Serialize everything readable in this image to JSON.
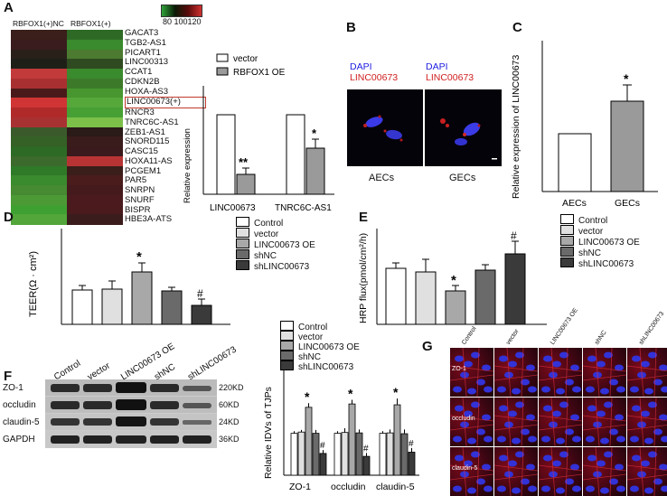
{
  "panels": {
    "a": "A",
    "b": "B",
    "c": "C",
    "d": "D",
    "e": "E",
    "f": "F",
    "g": "G"
  },
  "heatmap": {
    "col_labels": [
      "RBFOX1(+)NC",
      "RBFOX1(+)"
    ],
    "scale_ticks": "80 100120",
    "genes": [
      "GACAT3",
      "TGB2-AS1",
      "PICART1",
      "LINC00313",
      "CCAT1",
      "CDKN2B",
      "HOXA-AS3",
      "LINC00673(+)",
      "RNCR3",
      "TNRC6C-AS1",
      "ZEB1-AS1",
      "SNORD115",
      "CASC15",
      "HOXA11-AS",
      "PCGEM1",
      "PAR5",
      "SNRPN",
      "SNURF",
      "BISPR",
      "HBE3A-ATS"
    ],
    "highlight_gene": "LINC00673(+)",
    "colors_nc": [
      "#3a1f1a",
      "#3a1c1e",
      "#2a201a",
      "#1e2018",
      "#c23a3a",
      "#a83030",
      "#4a1a1a",
      "#d03434",
      "#b02a2a",
      "#a83232",
      "#3a5a2c",
      "#356026",
      "#2d6a26",
      "#3b6a2c",
      "#2f7a28",
      "#3a8a2e",
      "#468a32",
      "#4c9a36",
      "#3fa032",
      "#52a63a"
    ],
    "colors_oe": [
      "#2e6a26",
      "#3a8a2e",
      "#4b7a30",
      "#2f4a20",
      "#3a8a2e",
      "#3c7a2a",
      "#47962f",
      "#56a83a",
      "#46a034",
      "#7cc04a",
      "#2a1a18",
      "#3a1c1c",
      "#3a1a1c",
      "#b83434",
      "#3a1e1a",
      "#4a1c1c",
      "#441a1c",
      "#4a1a1e",
      "#4a1a1c",
      "#3a1c1c"
    ]
  },
  "bar_a": {
    "legend": [
      "vector",
      "RBFOX1 OE"
    ],
    "ylabel": "Relative expression",
    "categories": [
      "LINC00673",
      "TNRC6C-AS1"
    ],
    "marks": [
      "**",
      "*"
    ]
  },
  "micro_b": {
    "dapi": "DAPI",
    "linc": "LINC00673",
    "labels": [
      "AECs",
      "GECs"
    ]
  },
  "bar_c": {
    "ylabel": "Relative expression of LINC00673",
    "categories": [
      "AECs",
      "GECs"
    ],
    "mark": "*"
  },
  "bar_d": {
    "ylabel": "TEER(Ω · cm²)",
    "legend": [
      "Control",
      "vector",
      "LINC00673 OE",
      "shNC",
      "shLINC00673"
    ],
    "marks": [
      "*",
      "#"
    ]
  },
  "bar_e": {
    "ylabel": "HRP flux(pmol/cm²/h)",
    "legend": [
      "Control",
      "vector",
      "LINC00673 OE",
      "shNC",
      "shLINC00673"
    ],
    "marks": [
      "*",
      "#"
    ]
  },
  "blot_f": {
    "lanes": [
      "Control",
      "vector",
      "LINC00673 OE",
      "shNC",
      "shLINC00673"
    ],
    "proteins": [
      "ZO-1",
      "occludin",
      "claudin-5",
      "GAPDH"
    ],
    "sizes": [
      "220KD",
      "60KD",
      "24KD",
      "36KD"
    ]
  },
  "bar_f": {
    "ylabel": "Relative IDVs of TJPs",
    "legend": [
      "Control",
      "vector",
      "LINC00673 OE",
      "shNC",
      "shLINC00673"
    ],
    "categories": [
      "ZO-1",
      "occludin",
      "claudin-5"
    ]
  },
  "grid_g": {
    "cols": [
      "Control",
      "vector",
      "LINC00673 OE",
      "shNC",
      "shLINC00673"
    ],
    "rows": [
      "ZO-1",
      "occludin",
      "claudin-5"
    ]
  },
  "chart_data": [
    {
      "panel": "A",
      "type": "bar",
      "categories": [
        "LINC00673",
        "TNRC6C-AS1"
      ],
      "series": [
        {
          "name": "vector",
          "values": [
            1.0,
            1.0
          ]
        },
        {
          "name": "RBFOX1 OE",
          "values": [
            0.25,
            0.58
          ]
        }
      ],
      "errors": [
        [
          0,
          0
        ],
        [
          0.08,
          0.12
        ]
      ],
      "ylabel": "Relative expression",
      "ylim": [
        0,
        1.5
      ]
    },
    {
      "panel": "C",
      "type": "bar",
      "categories": [
        "AECs",
        "GECs"
      ],
      "values": [
        1.0,
        2.1
      ],
      "errors": [
        0,
        0.5
      ],
      "ylabel": "Relative expression of LINC00673",
      "ylim": [
        0,
        3
      ]
    },
    {
      "panel": "D",
      "type": "bar",
      "categories": [
        "Control",
        "vector",
        "LINC00673 OE",
        "shNC",
        "shLINC00673"
      ],
      "values": [
        95,
        97,
        142,
        93,
        55
      ],
      "errors": [
        8,
        15,
        14,
        8,
        12
      ],
      "ylabel": "TEER(Ω · cm²)",
      "ylim": [
        0,
        200
      ]
    },
    {
      "panel": "E",
      "type": "bar",
      "categories": [
        "Control",
        "vector",
        "LINC00673 OE",
        "shNC",
        "shLINC00673"
      ],
      "values": [
        157,
        148,
        93,
        150,
        197
      ],
      "errors": [
        8,
        22,
        12,
        10,
        20
      ],
      "ylabel": "HRP flux(pmol/cm²/h)",
      "ylim": [
        0,
        250
      ]
    },
    {
      "panel": "F",
      "type": "bar",
      "categories": [
        "ZO-1",
        "occludin",
        "claudin-5"
      ],
      "series": [
        {
          "name": "Control",
          "values": [
            1.0,
            1.0,
            1.0
          ]
        },
        {
          "name": "vector",
          "values": [
            1.03,
            1.02,
            1.01
          ]
        },
        {
          "name": "LINC00673 OE",
          "values": [
            1.62,
            1.7,
            1.68
          ]
        },
        {
          "name": "shNC",
          "values": [
            1.0,
            1.01,
            0.99
          ]
        },
        {
          "name": "shLINC00673",
          "values": [
            0.52,
            0.45,
            0.55
          ]
        }
      ],
      "errors": [
        [
          0.05,
          0.05,
          0.1,
          0.08,
          0.08
        ],
        [
          0.05,
          0.1,
          0.1,
          0.08,
          0.08
        ],
        [
          0.05,
          0.08,
          0.15,
          0.1,
          0.1
        ]
      ],
      "ylabel": "Relative IDVs of TJPs",
      "ylim": [
        0,
        2.5
      ]
    }
  ]
}
